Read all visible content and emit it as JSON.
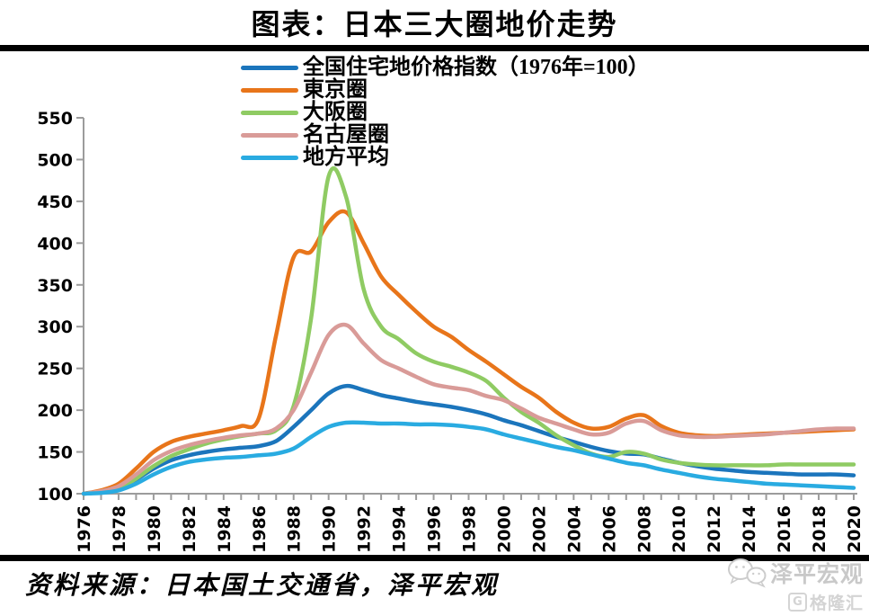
{
  "header": {
    "title": "图表：日本三大圈地价走势"
  },
  "chart_data": {
    "type": "line",
    "title": "图表：日本三大圈地价走势",
    "x_label": "",
    "y_label": "",
    "ylim": [
      100,
      550
    ],
    "y_ticks": [
      100,
      150,
      200,
      250,
      300,
      350,
      400,
      450,
      500,
      550
    ],
    "x_range": [
      1976,
      2020
    ],
    "x_tick_label_step": 2,
    "grid": false,
    "legend_position": "top-center",
    "x_years": [
      1976,
      1977,
      1978,
      1979,
      1980,
      1981,
      1982,
      1983,
      1984,
      1985,
      1986,
      1987,
      1988,
      1989,
      1990,
      1991,
      1992,
      1993,
      1994,
      1995,
      1996,
      1997,
      1998,
      1999,
      2000,
      2001,
      2002,
      2003,
      2004,
      2005,
      2006,
      2007,
      2008,
      2009,
      2010,
      2011,
      2012,
      2013,
      2014,
      2015,
      2016,
      2017,
      2018,
      2019,
      2020
    ],
    "series": [
      {
        "key": "national",
        "name": "全国住宅地价格指数（1976年=100）",
        "color": "#1B75BC",
        "values": [
          100,
          102,
          107,
          117,
          130,
          140,
          146,
          150,
          153,
          155,
          157,
          163,
          180,
          200,
          220,
          229,
          224,
          218,
          214,
          210,
          207,
          204,
          200,
          195,
          188,
          182,
          175,
          168,
          162,
          156,
          151,
          148,
          147,
          142,
          137,
          133,
          130,
          128,
          126,
          125,
          124,
          123,
          123,
          123,
          122
        ]
      },
      {
        "key": "tokyo",
        "name": "東京圈",
        "color": "#E8751A",
        "values": [
          100,
          104,
          112,
          130,
          150,
          162,
          168,
          172,
          176,
          181,
          190,
          290,
          383,
          390,
          425,
          437,
          400,
          360,
          338,
          318,
          300,
          288,
          272,
          258,
          243,
          228,
          215,
          198,
          185,
          178,
          180,
          190,
          194,
          181,
          173,
          170,
          169,
          170,
          171,
          172,
          173,
          174,
          175,
          176,
          177
        ]
      },
      {
        "key": "osaka",
        "name": "大阪圈",
        "color": "#8FCB63",
        "values": [
          100,
          102,
          106,
          118,
          133,
          145,
          153,
          160,
          165,
          169,
          172,
          176,
          205,
          310,
          480,
          455,
          345,
          300,
          285,
          268,
          258,
          252,
          245,
          235,
          215,
          198,
          185,
          170,
          158,
          148,
          144,
          150,
          148,
          141,
          137,
          135,
          134,
          134,
          134,
          134,
          135,
          135,
          135,
          135,
          135
        ]
      },
      {
        "key": "nagoya",
        "name": "名古屋圈",
        "color": "#D99B98",
        "values": [
          100,
          103,
          109,
          123,
          140,
          151,
          158,
          163,
          167,
          170,
          172,
          178,
          200,
          245,
          290,
          302,
          280,
          260,
          250,
          240,
          231,
          227,
          224,
          217,
          212,
          202,
          191,
          184,
          177,
          171,
          173,
          184,
          187,
          176,
          170,
          168,
          168,
          169,
          170,
          171,
          173,
          175,
          177,
          178,
          178
        ]
      },
      {
        "key": "regional",
        "name": "地方平均",
        "color": "#29ABE1",
        "values": [
          100,
          101,
          104,
          112,
          123,
          132,
          138,
          141,
          143,
          144,
          146,
          148,
          154,
          168,
          180,
          185,
          185,
          184,
          184,
          183,
          183,
          182,
          180,
          177,
          171,
          166,
          161,
          156,
          152,
          147,
          142,
          137,
          134,
          129,
          125,
          121,
          118,
          116,
          114,
          112,
          111,
          110,
          109,
          108,
          107
        ]
      }
    ],
    "axis_color": "#9C9C9C"
  },
  "footer": {
    "source": "资料来源：日本国土交通省，泽平宏观"
  },
  "watermark": {
    "brand": "泽平宏观",
    "publisher": "格隆汇",
    "publisher_letter": "G"
  }
}
